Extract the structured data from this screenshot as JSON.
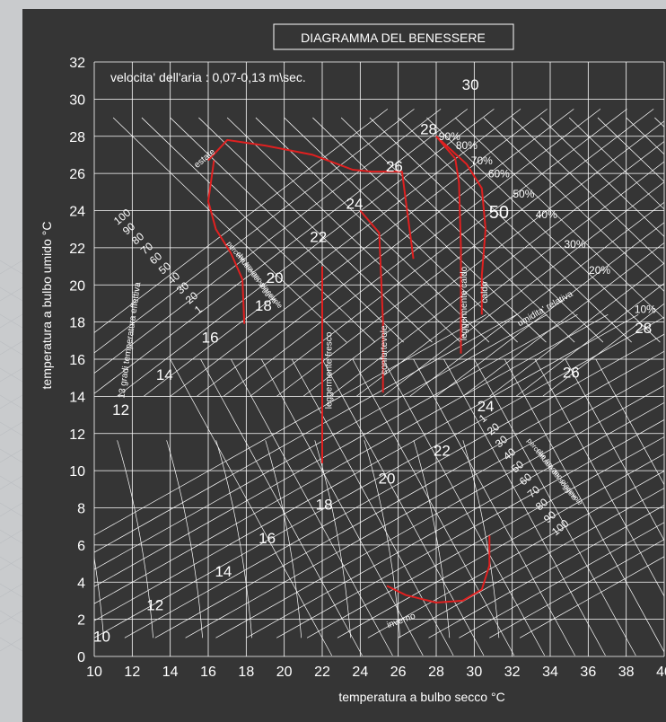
{
  "colors": {
    "background": "#c9cbcd",
    "panel": "#353535",
    "grid": "#ffffff",
    "comfort_curve": "#e02020"
  },
  "chart_data": {
    "type": "line",
    "title": "DIAGRAMMA DEL BENESSERE",
    "subtitle": "velocita' dell'aria : 0,07-0,13 m\\sec.",
    "xlabel": "temperatura a bulbo secco  °C",
    "ylabel": "temperatura a bulbo umido °C",
    "xlim": [
      10,
      40
    ],
    "ylim": [
      0,
      32
    ],
    "x_ticks": [
      "10",
      "12",
      "14",
      "16",
      "18",
      "20",
      "22",
      "24",
      "26",
      "28",
      "30",
      "32",
      "34",
      "36",
      "38",
      "40"
    ],
    "y_ticks": [
      "0",
      "2",
      "4",
      "6",
      "8",
      "10",
      "12",
      "14",
      "16",
      "18",
      "20",
      "22",
      "24",
      "26",
      "28",
      "30",
      "32"
    ],
    "grid": true,
    "effective_temperature_labels": [
      {
        "text": "10",
        "x": 10.4,
        "y": 0.8
      },
      {
        "text": "12",
        "x": 13.2,
        "y": 2.5
      },
      {
        "text": "12",
        "x": 11.4,
        "y": 13.0
      },
      {
        "text": "14",
        "x": 16.8,
        "y": 4.3
      },
      {
        "text": "14",
        "x": 13.7,
        "y": 14.9
      },
      {
        "text": "16",
        "x": 19.1,
        "y": 6.1
      },
      {
        "text": "16",
        "x": 16.1,
        "y": 16.9
      },
      {
        "text": "18",
        "x": 22.1,
        "y": 7.9
      },
      {
        "text": "18",
        "x": 18.9,
        "y": 18.6
      },
      {
        "text": "20",
        "x": 25.4,
        "y": 9.3
      },
      {
        "text": "20",
        "x": 19.5,
        "y": 20.1
      },
      {
        "text": "22",
        "x": 28.3,
        "y": 10.8
      },
      {
        "text": "22",
        "x": 21.8,
        "y": 22.3
      },
      {
        "text": "24",
        "x": 30.6,
        "y": 13.2
      },
      {
        "text": "24",
        "x": 23.7,
        "y": 24.1
      },
      {
        "text": "26",
        "x": 35.1,
        "y": 15.0
      },
      {
        "text": "26",
        "x": 25.8,
        "y": 26.1
      },
      {
        "text": "28",
        "x": 38.9,
        "y": 17.4
      },
      {
        "text": "28",
        "x": 27.6,
        "y": 28.1
      },
      {
        "text": "30",
        "x": 29.8,
        "y": 30.5
      }
    ],
    "relative_humidity_labels": [
      {
        "text": "90%",
        "x": 28.7,
        "y": 27.8
      },
      {
        "text": "80%",
        "x": 29.6,
        "y": 27.3
      },
      {
        "text": "70%",
        "x": 30.4,
        "y": 26.5
      },
      {
        "text": "60%",
        "x": 31.3,
        "y": 25.8
      },
      {
        "text": "50%",
        "x": 32.6,
        "y": 24.7
      },
      {
        "text": "40%",
        "x": 33.8,
        "y": 23.6
      },
      {
        "text": "30%",
        "x": 35.3,
        "y": 22.0
      },
      {
        "text": "20%",
        "x": 36.6,
        "y": 20.6
      },
      {
        "text": "10%",
        "x": 39.0,
        "y": 18.5
      }
    ],
    "velocity_labels_upper": [
      "100",
      "90",
      "80",
      "70",
      "60",
      "50",
      "40",
      "30",
      "20",
      "1"
    ],
    "velocity_labels_lower": [
      "1",
      "20",
      "30",
      "40",
      "50",
      "60",
      "70",
      "80",
      "90",
      "100"
    ],
    "annotations": [
      {
        "text": "50",
        "x": 31.3,
        "y": 23.6
      },
      {
        "text": "estate",
        "x": 15.9,
        "y": 26.7
      },
      {
        "text": "inverno",
        "x": 26.2,
        "y": 1.8
      },
      {
        "text": "umidita' relativa",
        "x": 33.8,
        "y": 18.6
      },
      {
        "text": "13 gradi temperatura effettiva",
        "x": 12.0,
        "y": 17.0
      },
      {
        "text": "percentuale dei soggetti",
        "x": 18.2,
        "y": 20.6
      },
      {
        "text": "che trovano piacevole",
        "x": 18.6,
        "y": 20.2
      },
      {
        "text": "percentuale dei soggetti",
        "x": 34.0,
        "y": 10.0
      },
      {
        "text": "che trovano piacevole",
        "x": 34.4,
        "y": 9.6
      }
    ],
    "comfort_curves": [
      {
        "name": "estate",
        "x": [
          16.0,
          17.0,
          19.0,
          21.5,
          23.6,
          24.6,
          25.4,
          26.2,
          26.8
        ],
        "y": [
          26.7,
          27.8,
          27.5,
          27.0,
          26.2,
          26.1,
          26.1,
          26.1,
          21.4
        ]
      },
      {
        "name": "estate",
        "x": [
          16.3,
          16.0,
          16.4,
          17.2,
          17.8,
          17.9
        ],
        "y": [
          26.7,
          24.5,
          23.0,
          21.7,
          20.3,
          17.9
        ]
      },
      {
        "name": "leggermente fresco",
        "x": [
          22.0,
          22.0,
          22.0
        ],
        "y": [
          21.0,
          16.0,
          10.4
        ]
      },
      {
        "name": "confortevole",
        "x": [
          24.0,
          25.0,
          25.2,
          25.2
        ],
        "y": [
          24.0,
          22.8,
          18.0,
          14.2
        ]
      },
      {
        "name": "leggermente caldo",
        "x": [
          28.0,
          29.0,
          29.2,
          29.3,
          29.3
        ],
        "y": [
          28.0,
          26.8,
          25.5,
          22.0,
          16.3
        ]
      },
      {
        "name": "caldo",
        "x": [
          28.0,
          29.6,
          30.4,
          30.6,
          30.4,
          30.4
        ],
        "y": [
          28.0,
          26.5,
          25.2,
          23.0,
          20.5,
          18.4
        ]
      },
      {
        "name": "inverno",
        "x": [
          25.4,
          26.4,
          28.0,
          29.4,
          30.4,
          30.8,
          30.8
        ],
        "y": [
          3.8,
          3.3,
          2.9,
          3.0,
          3.6,
          4.9,
          6.5
        ]
      }
    ],
    "curve_labels": [
      {
        "text": "leggermente fresco",
        "x": 22.5,
        "y": 15.4
      },
      {
        "text": "confortevole",
        "x": 25.4,
        "y": 16.5
      },
      {
        "text": "leggermente caldo",
        "x": 29.6,
        "y": 19.0
      },
      {
        "text": "caldo",
        "x": 30.7,
        "y": 19.6
      }
    ]
  }
}
